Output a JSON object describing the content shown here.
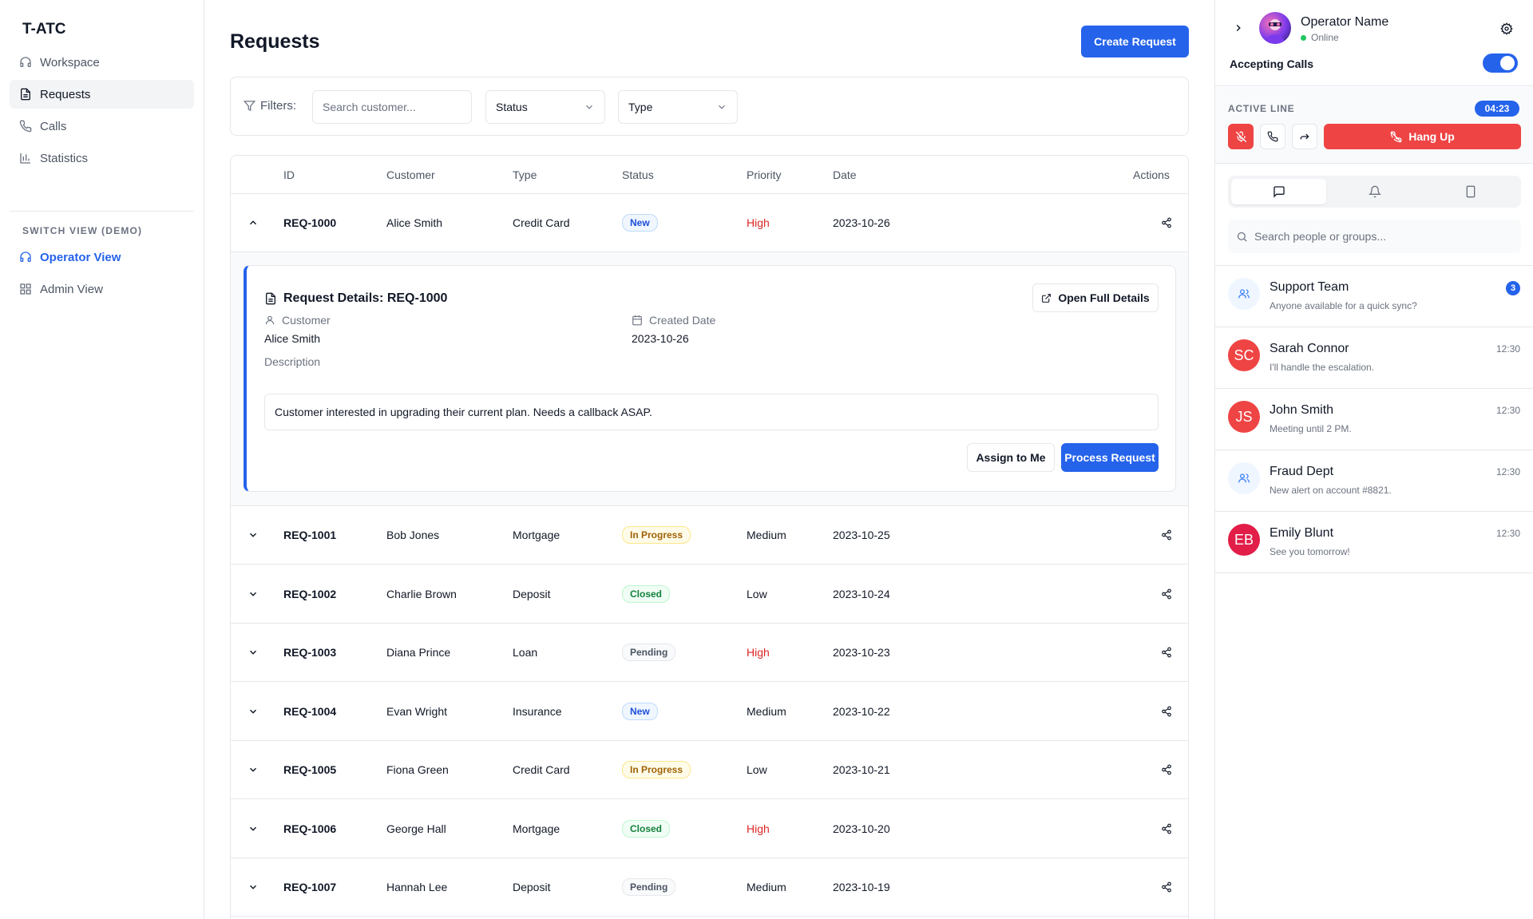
{
  "app": {
    "brand": "T-ATC"
  },
  "sidebar": {
    "items": [
      {
        "label": "Workspace",
        "icon": "headset-icon"
      },
      {
        "label": "Requests",
        "icon": "document-icon"
      },
      {
        "label": "Calls",
        "icon": "phone-icon"
      },
      {
        "label": "Statistics",
        "icon": "bar-chart-icon"
      }
    ],
    "switch_title": "SWITCH VIEW (DEMO)",
    "views": [
      {
        "label": "Operator View",
        "icon": "headset-icon"
      },
      {
        "label": "Admin View",
        "icon": "grid-icon"
      }
    ]
  },
  "main": {
    "title": "Requests",
    "create_label": "Create Request",
    "filters": {
      "label": "Filters:",
      "search_placeholder": "Search customer...",
      "status": "Status",
      "type": "Type"
    },
    "table": {
      "headers": {
        "id": "ID",
        "customer": "Customer",
        "type": "Type",
        "status": "Status",
        "priority": "Priority",
        "date": "Date",
        "actions": "Actions"
      },
      "rows": [
        {
          "id": "REQ-1000",
          "customer": "Alice Smith",
          "type": "Credit Card",
          "status": "New",
          "priority": "High",
          "date": "2023-10-26"
        },
        {
          "id": "REQ-1001",
          "customer": "Bob Jones",
          "type": "Mortgage",
          "status": "In Progress",
          "priority": "Medium",
          "date": "2023-10-25"
        },
        {
          "id": "REQ-1002",
          "customer": "Charlie Brown",
          "type": "Deposit",
          "status": "Closed",
          "priority": "Low",
          "date": "2023-10-24"
        },
        {
          "id": "REQ-1003",
          "customer": "Diana Prince",
          "type": "Loan",
          "status": "Pending",
          "priority": "High",
          "date": "2023-10-23"
        },
        {
          "id": "REQ-1004",
          "customer": "Evan Wright",
          "type": "Insurance",
          "status": "New",
          "priority": "Medium",
          "date": "2023-10-22"
        },
        {
          "id": "REQ-1005",
          "customer": "Fiona Green",
          "type": "Credit Card",
          "status": "In Progress",
          "priority": "Low",
          "date": "2023-10-21"
        },
        {
          "id": "REQ-1006",
          "customer": "George Hall",
          "type": "Mortgage",
          "status": "Closed",
          "priority": "High",
          "date": "2023-10-20"
        },
        {
          "id": "REQ-1007",
          "customer": "Hannah Lee",
          "type": "Deposit",
          "status": "Pending",
          "priority": "Medium",
          "date": "2023-10-19"
        }
      ]
    },
    "details": {
      "title": "Request Details: REQ-1000",
      "open_full": "Open Full Details",
      "customer_label": "Customer",
      "customer_value": "Alice Smith",
      "created_label": "Created Date",
      "created_value": "2023-10-26",
      "description_label": "Description",
      "description": "Customer interested in upgrading their current plan. Needs a callback ASAP.",
      "assign": "Assign to Me",
      "process": "Process Request"
    }
  },
  "right_panel": {
    "operator": {
      "name": "Operator Name",
      "status": "Online"
    },
    "accepting_label": "Accepting Calls",
    "accepting_on": true,
    "active_line_label": "ACTIVE LINE",
    "timer": "04:23",
    "hang_up": "Hang Up",
    "search_placeholder": "Search people or groups...",
    "chats": [
      {
        "name": "Support Team",
        "message": "Anyone available for a quick sync?",
        "badge": "3",
        "group": true
      },
      {
        "name": "Sarah Connor",
        "message": "I'll handle the escalation.",
        "time": "12:30",
        "initials": "SC",
        "color": "#ef4444"
      },
      {
        "name": "John Smith",
        "message": "Meeting until 2 PM.",
        "time": "12:30",
        "initials": "JS",
        "color": "#ef4444"
      },
      {
        "name": "Fraud Dept",
        "message": "New alert on account #8821.",
        "time": "12:30",
        "group": true
      },
      {
        "name": "Emily Blunt",
        "message": "See you tomorrow!",
        "time": "12:30",
        "initials": "EB",
        "color": "#e11d48"
      }
    ]
  },
  "colors": {
    "accent": "#2563eb",
    "danger": "#ef4444",
    "high_priority": "#dc2626"
  }
}
